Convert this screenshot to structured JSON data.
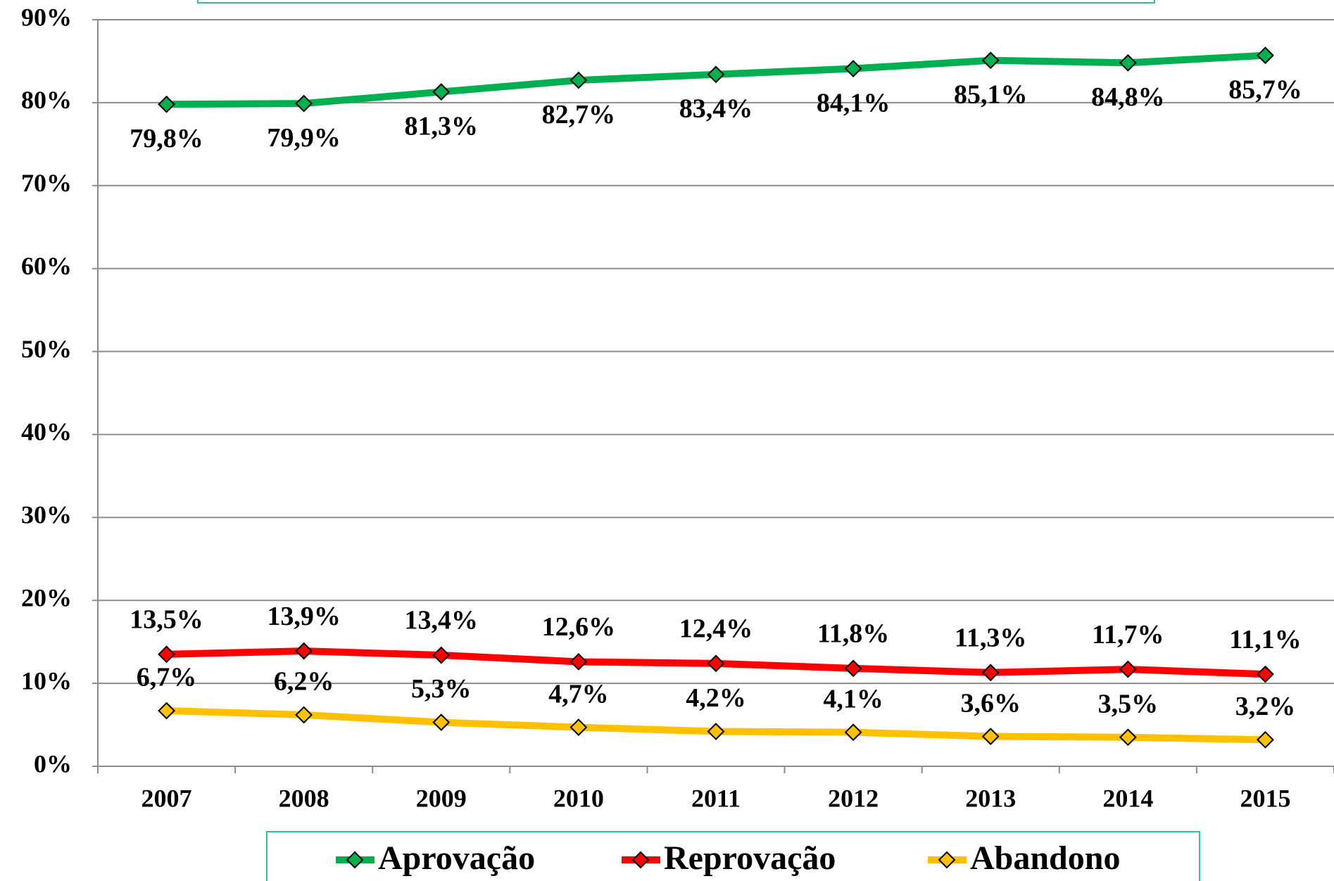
{
  "chart_data": {
    "type": "line",
    "categories": [
      "2007",
      "2008",
      "2009",
      "2010",
      "2011",
      "2012",
      "2013",
      "2014",
      "2015"
    ],
    "series": [
      {
        "name": "Aprovação",
        "color": "#00b050",
        "values": [
          79.8,
          79.9,
          81.3,
          82.7,
          83.4,
          84.1,
          85.1,
          84.8,
          85.7
        ],
        "value_labels": [
          "79,8%",
          "79,9%",
          "81,3%",
          "82,7%",
          "83,4%",
          "84,1%",
          "85,1%",
          "84,8%",
          "85,7%"
        ]
      },
      {
        "name": "Reprovação",
        "color": "#ff0000",
        "values": [
          13.5,
          13.9,
          13.4,
          12.6,
          12.4,
          11.8,
          11.3,
          11.7,
          11.1
        ],
        "value_labels": [
          "13,5%",
          "13,9%",
          "13,4%",
          "12,6%",
          "12,4%",
          "11,8%",
          "11,3%",
          "11,7%",
          "11,1%"
        ]
      },
      {
        "name": "Abandono",
        "color": "#ffc000",
        "values": [
          6.7,
          6.2,
          5.3,
          4.7,
          4.2,
          4.1,
          3.6,
          3.5,
          3.2
        ],
        "value_labels": [
          "6,7%",
          "6,2%",
          "5,3%",
          "4,7%",
          "4,2%",
          "4,1%",
          "3,6%",
          "3,5%",
          "3,2%"
        ]
      }
    ],
    "ylim": [
      0,
      90
    ],
    "yticks": [
      {
        "value": 0,
        "label": "0%"
      },
      {
        "value": 10,
        "label": "10%"
      },
      {
        "value": 20,
        "label": "20%"
      },
      {
        "value": 30,
        "label": "30%"
      },
      {
        "value": 40,
        "label": "40%"
      },
      {
        "value": 50,
        "label": "50%"
      },
      {
        "value": 60,
        "label": "60%"
      },
      {
        "value": 70,
        "label": "70%"
      },
      {
        "value": 80,
        "label": "80%"
      },
      {
        "value": 90,
        "label": "90%"
      }
    ],
    "grid": true
  }
}
